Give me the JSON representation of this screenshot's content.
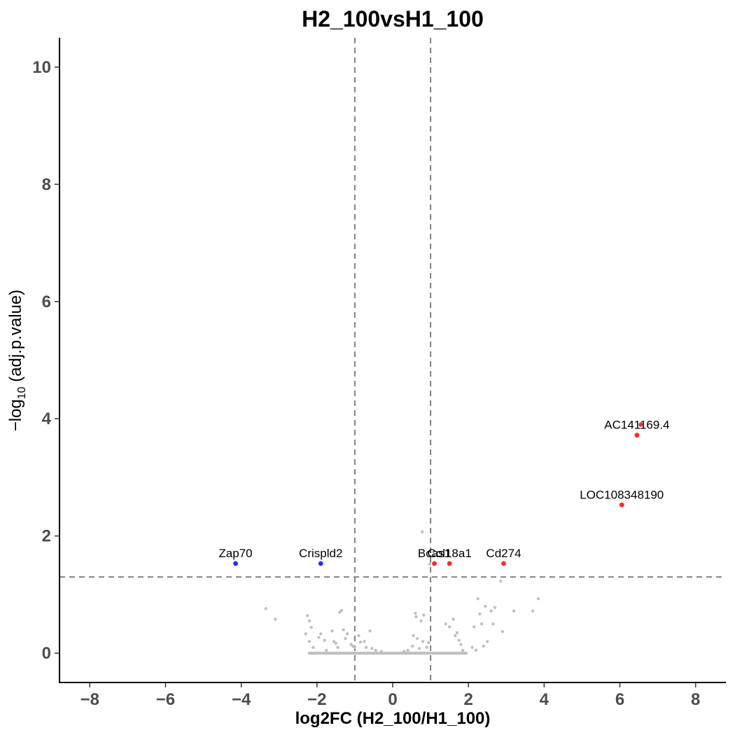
{
  "chart_data": {
    "type": "scatter",
    "title": "H2_100vsH1_100",
    "xlabel": "log2FC (H2_100/H1_100)",
    "ylabel_main": "−log",
    "ylabel_sub": "10",
    "ylabel_rest": " (adj.p.value)",
    "xlim": [
      -8.8,
      8.8
    ],
    "ylim": [
      -0.5,
      10.5
    ],
    "xticks": [
      -8,
      -6,
      -4,
      -2,
      0,
      2,
      4,
      6,
      8
    ],
    "xtick_labels": [
      "−8",
      "−6",
      "−4",
      "−2",
      "0",
      "2",
      "4",
      "6",
      "8"
    ],
    "yticks": [
      0,
      2,
      4,
      6,
      8,
      10
    ],
    "ytick_labels": [
      "0",
      "2",
      "4",
      "6",
      "8",
      "10"
    ],
    "thresholds": {
      "x": [
        -1,
        1
      ],
      "y": 1.3
    },
    "grid": false,
    "legend": "none",
    "colors": {
      "up": "#ff2a2a",
      "down": "#2a2aff",
      "ns": "#c0c0c0",
      "threshold": "#808080"
    },
    "labeled_points": [
      {
        "label": "AC141169.4",
        "x": 6.45,
        "y": 3.72,
        "group": "up"
      },
      {
        "label": "LOC108348190",
        "x": 6.05,
        "y": 2.53,
        "group": "up"
      },
      {
        "label": "Cd274",
        "x": 2.93,
        "y": 1.53,
        "group": "up"
      },
      {
        "label": "Col18a1",
        "x": 1.5,
        "y": 1.53,
        "group": "up"
      },
      {
        "label": "Bcas1",
        "x": 1.1,
        "y": 1.53,
        "group": "up"
      },
      {
        "label": "Crispld2",
        "x": -1.9,
        "y": 1.53,
        "group": "down"
      },
      {
        "label": "Zap70",
        "x": -4.15,
        "y": 1.53,
        "group": "down"
      }
    ],
    "unlabeled_up": [
      {
        "x": 6.55,
        "y": 3.9
      }
    ],
    "ns_points": [
      [
        -3.35,
        0.76
      ],
      [
        -3.1,
        0.58
      ],
      [
        -2.25,
        0.64
      ],
      [
        -2.2,
        0.55
      ],
      [
        -2.15,
        0.44
      ],
      [
        -2.3,
        0.33
      ],
      [
        -2.2,
        0.2
      ],
      [
        -2.1,
        0.1
      ],
      [
        -1.95,
        0.27
      ],
      [
        -1.9,
        0.33
      ],
      [
        -1.8,
        0.22
      ],
      [
        -1.75,
        0.05
      ],
      [
        -1.6,
        0.38
      ],
      [
        -1.55,
        0.2
      ],
      [
        -1.5,
        0.17
      ],
      [
        -1.45,
        0.1
      ],
      [
        -1.4,
        0.7
      ],
      [
        -1.35,
        0.73
      ],
      [
        -1.3,
        0.4
      ],
      [
        -1.25,
        0.25
      ],
      [
        -1.2,
        0.33
      ],
      [
        -1.1,
        0.15
      ],
      [
        -1.05,
        0.12
      ],
      [
        -0.9,
        0.3
      ],
      [
        -0.85,
        0.19
      ],
      [
        -0.75,
        0.2
      ],
      [
        -0.7,
        0.1
      ],
      [
        -0.6,
        0.38
      ],
      [
        -0.55,
        0.08
      ],
      [
        -0.45,
        0.05
      ],
      [
        0.52,
        0.12
      ],
      [
        0.55,
        0.3
      ],
      [
        0.6,
        0.68
      ],
      [
        0.62,
        0.62
      ],
      [
        0.65,
        0.25
      ],
      [
        0.7,
        0.08
      ],
      [
        0.75,
        0.55
      ],
      [
        0.8,
        0.2
      ],
      [
        0.82,
        0.65
      ],
      [
        0.9,
        0.1
      ],
      [
        0.95,
        0.18
      ],
      [
        0.78,
        2.07
      ],
      [
        1.4,
        0.5
      ],
      [
        1.5,
        0.45
      ],
      [
        1.6,
        0.58
      ],
      [
        1.65,
        0.3
      ],
      [
        1.7,
        0.35
      ],
      [
        1.75,
        0.22
      ],
      [
        1.8,
        0.15
      ],
      [
        1.85,
        0.05
      ],
      [
        2.1,
        0.1
      ],
      [
        2.15,
        0.45
      ],
      [
        2.2,
        0.05
      ],
      [
        2.25,
        0.93
      ],
      [
        2.3,
        0.67
      ],
      [
        2.35,
        0.5
      ],
      [
        2.4,
        0.12
      ],
      [
        2.45,
        0.8
      ],
      [
        2.5,
        0.2
      ],
      [
        2.6,
        0.72
      ],
      [
        2.65,
        0.5
      ],
      [
        2.7,
        0.78
      ],
      [
        2.85,
        1.23
      ],
      [
        2.9,
        0.37
      ],
      [
        3.2,
        0.72
      ],
      [
        3.7,
        0.72
      ],
      [
        3.85,
        0.93
      ],
      [
        0.98,
        1.52
      ],
      [
        -1.0,
        0.1
      ],
      [
        -0.3,
        0.03
      ],
      [
        0.3,
        0.03
      ],
      [
        0.4,
        0.05
      ]
    ],
    "baseline_band": {
      "x_from": -2.2,
      "x_to": 1.95,
      "y": 0
    }
  }
}
